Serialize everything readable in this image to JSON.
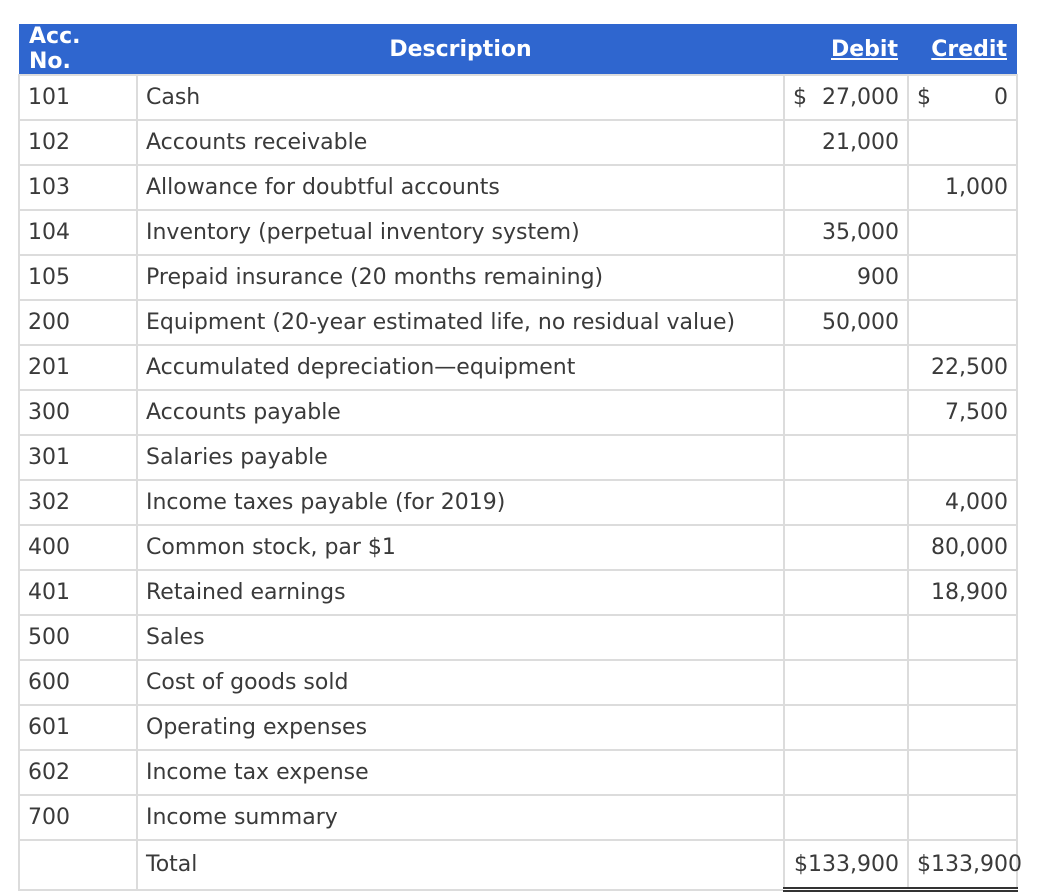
{
  "header": {
    "acc_no": "Acc. No.",
    "description": "Description",
    "debit": "Debit",
    "credit": "Credit"
  },
  "rows": [
    {
      "acc": "101",
      "desc": "Cash",
      "debit_sym": "$",
      "debit": "27,000",
      "credit_sym": "$",
      "credit": "0"
    },
    {
      "acc": "102",
      "desc": "Accounts receivable",
      "debit_sym": "",
      "debit": "21,000",
      "credit_sym": "",
      "credit": ""
    },
    {
      "acc": "103",
      "desc": "Allowance for doubtful accounts",
      "debit_sym": "",
      "debit": "",
      "credit_sym": "",
      "credit": "1,000"
    },
    {
      "acc": "104",
      "desc": "Inventory (perpetual inventory system)",
      "debit_sym": "",
      "debit": "35,000",
      "credit_sym": "",
      "credit": ""
    },
    {
      "acc": "105",
      "desc": "Prepaid insurance (20 months remaining)",
      "debit_sym": "",
      "debit": "900",
      "credit_sym": "",
      "credit": ""
    },
    {
      "acc": "200",
      "desc": "Equipment (20-year estimated life, no residual value)",
      "debit_sym": "",
      "debit": "50,000",
      "credit_sym": "",
      "credit": ""
    },
    {
      "acc": "201",
      "desc": "Accumulated depreciation—equipment",
      "debit_sym": "",
      "debit": "",
      "credit_sym": "",
      "credit": "22,500"
    },
    {
      "acc": "300",
      "desc": "Accounts payable",
      "debit_sym": "",
      "debit": "",
      "credit_sym": "",
      "credit": "7,500"
    },
    {
      "acc": "301",
      "desc": "Salaries payable",
      "debit_sym": "",
      "debit": "",
      "credit_sym": "",
      "credit": ""
    },
    {
      "acc": "302",
      "desc": "Income taxes payable (for 2019)",
      "debit_sym": "",
      "debit": "",
      "credit_sym": "",
      "credit": "4,000"
    },
    {
      "acc": "400",
      "desc": "Common stock, par $1",
      "debit_sym": "",
      "debit": "",
      "credit_sym": "",
      "credit": "80,000"
    },
    {
      "acc": "401",
      "desc": "Retained earnings",
      "debit_sym": "",
      "debit": "",
      "credit_sym": "",
      "credit": "18,900"
    },
    {
      "acc": "500",
      "desc": "Sales",
      "debit_sym": "",
      "debit": "",
      "credit_sym": "",
      "credit": ""
    },
    {
      "acc": "600",
      "desc": "Cost of goods sold",
      "debit_sym": "",
      "debit": "",
      "credit_sym": "",
      "credit": ""
    },
    {
      "acc": "601",
      "desc": "Operating expenses",
      "debit_sym": "",
      "debit": "",
      "credit_sym": "",
      "credit": ""
    },
    {
      "acc": "602",
      "desc": "Income tax expense",
      "debit_sym": "",
      "debit": "",
      "credit_sym": "",
      "credit": ""
    },
    {
      "acc": "700",
      "desc": "Income summary",
      "debit_sym": "",
      "debit": "",
      "credit_sym": "",
      "credit": ""
    }
  ],
  "total": {
    "label": "Total",
    "debit": "$133,900",
    "credit": "$133,900"
  }
}
